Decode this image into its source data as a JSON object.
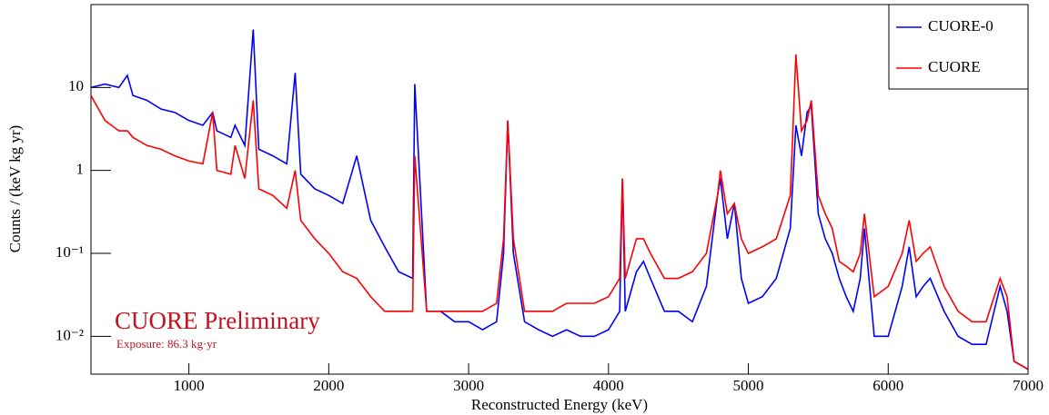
{
  "chart_data": {
    "type": "line",
    "xlabel": "Reconstructed Energy (keV)",
    "ylabel": "Counts / (keV kg yr)",
    "annotations": [
      "CUORE Preliminary",
      "Exposure: 86.3 kg·yr"
    ],
    "log_y": true,
    "legend": "upper right",
    "xlim": [
      300,
      7000
    ],
    "ylim": [
      0.0035,
      100
    ],
    "xticks": [
      1000,
      2000,
      3000,
      4000,
      5000,
      6000,
      7000
    ],
    "yticks": [
      {
        "value": 0.01,
        "label": "10⁻²"
      },
      {
        "value": 0.1,
        "label": "10⁻¹"
      },
      1,
      10
    ],
    "x": [
      300,
      400,
      500,
      560,
      600,
      700,
      800,
      900,
      1000,
      1100,
      1170,
      1200,
      1300,
      1330,
      1400,
      1460,
      1500,
      1600,
      1700,
      1760,
      1800,
      1900,
      2000,
      2100,
      2200,
      2300,
      2400,
      2500,
      2600,
      2615,
      2700,
      2800,
      2900,
      3000,
      3100,
      3200,
      3250,
      3280,
      3320,
      3400,
      3500,
      3600,
      3700,
      3800,
      3900,
      4000,
      4080,
      4100,
      4120,
      4200,
      4250,
      4300,
      4400,
      4500,
      4600,
      4700,
      4780,
      4800,
      4850,
      4900,
      4950,
      5000,
      5100,
      5200,
      5300,
      5340,
      5380,
      5420,
      5450,
      5500,
      5550,
      5600,
      5650,
      5700,
      5750,
      5800,
      5830,
      5900,
      6000,
      6100,
      6150,
      6200,
      6250,
      6300,
      6400,
      6500,
      6600,
      6700,
      6800,
      6850,
      6900,
      7000
    ],
    "series": [
      {
        "name": "CUORE-0",
        "color": "#0000ff",
        "values": [
          10,
          11,
          10,
          14,
          8,
          7,
          5.5,
          5,
          4,
          3.5,
          5,
          3,
          2.5,
          3.5,
          2,
          50,
          1.8,
          1.5,
          1.2,
          15,
          0.9,
          0.6,
          0.5,
          0.4,
          1.5,
          0.25,
          0.12,
          0.06,
          0.05,
          11,
          0.02,
          0.02,
          0.015,
          0.015,
          0.012,
          0.015,
          0.1,
          4,
          0.1,
          0.015,
          0.012,
          0.01,
          0.012,
          0.01,
          0.01,
          0.012,
          0.02,
          0.8,
          0.02,
          0.06,
          0.08,
          0.05,
          0.02,
          0.02,
          0.015,
          0.04,
          0.5,
          0.8,
          0.15,
          0.4,
          0.05,
          0.025,
          0.03,
          0.05,
          0.2,
          3.5,
          1.5,
          5,
          6,
          0.3,
          0.15,
          0.1,
          0.05,
          0.03,
          0.02,
          0.05,
          0.2,
          0.01,
          0.01,
          0.04,
          0.12,
          0.03,
          0.04,
          0.05,
          0.02,
          0.01,
          0.008,
          0.008,
          0.04,
          0.02,
          0.005,
          0.004
        ]
      },
      {
        "name": "CUORE",
        "color": "#ff0000",
        "values": [
          8,
          4,
          3,
          3,
          2.5,
          2,
          1.8,
          1.5,
          1.3,
          1.2,
          5,
          1,
          0.9,
          2,
          0.8,
          7,
          0.6,
          0.5,
          0.35,
          1,
          0.25,
          0.15,
          0.1,
          0.06,
          0.05,
          0.03,
          0.02,
          0.02,
          0.02,
          1.5,
          0.02,
          0.02,
          0.02,
          0.02,
          0.02,
          0.025,
          0.15,
          4,
          0.15,
          0.02,
          0.02,
          0.02,
          0.025,
          0.025,
          0.025,
          0.03,
          0.05,
          0.8,
          0.05,
          0.15,
          0.15,
          0.1,
          0.05,
          0.05,
          0.06,
          0.1,
          0.5,
          1,
          0.3,
          0.4,
          0.15,
          0.1,
          0.12,
          0.15,
          0.5,
          25,
          3,
          4,
          7,
          0.5,
          0.3,
          0.2,
          0.08,
          0.07,
          0.06,
          0.1,
          0.3,
          0.03,
          0.04,
          0.1,
          0.25,
          0.08,
          0.1,
          0.12,
          0.04,
          0.02,
          0.015,
          0.015,
          0.05,
          0.03,
          0.005,
          0.004
        ]
      }
    ]
  }
}
